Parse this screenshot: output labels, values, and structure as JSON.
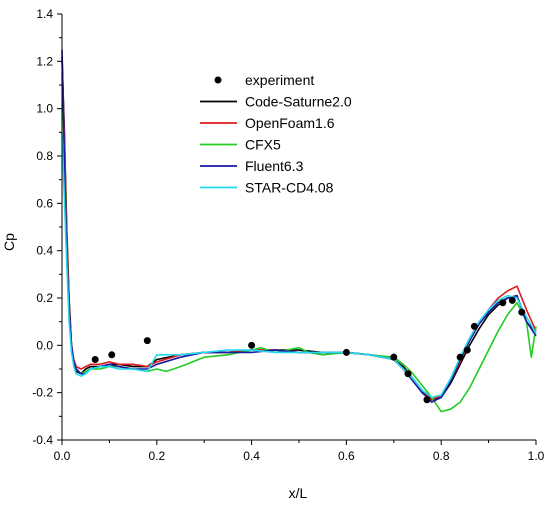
{
  "chart_data": {
    "type": "line",
    "xlabel": "x/L",
    "ylabel": "Cp",
    "xlim": [
      0.0,
      1.0
    ],
    "ylim": [
      -0.4,
      1.4
    ],
    "x_ticks": [
      "0.0",
      "0.2",
      "0.4",
      "0.6",
      "0.8",
      "1.0"
    ],
    "y_ticks": [
      "-0.4",
      "-0.2",
      "0.0",
      "0.2",
      "0.4",
      "0.6",
      "0.8",
      "1.0",
      "1.2",
      "1.4"
    ],
    "x_tick_values": [
      0.0,
      0.2,
      0.4,
      0.6,
      0.8,
      1.0
    ],
    "y_tick_values": [
      -0.4,
      -0.2,
      0.0,
      0.2,
      0.4,
      0.6,
      0.8,
      1.0,
      1.2,
      1.4
    ],
    "grid": false,
    "legend_position": "top-center",
    "experiment": {
      "name": "experiment",
      "color": "#000000",
      "x": [
        0.07,
        0.105,
        0.18,
        0.4,
        0.6,
        0.7,
        0.73,
        0.77,
        0.84,
        0.855,
        0.87,
        0.93,
        0.95,
        0.97
      ],
      "y": [
        -0.06,
        -0.04,
        0.02,
        0.0,
        -0.03,
        -0.05,
        -0.12,
        -0.23,
        -0.05,
        -0.02,
        0.08,
        0.18,
        0.19,
        0.14
      ]
    },
    "series": [
      {
        "name": "Code-Saturne2.0",
        "color": "#000000",
        "x": [
          0.0,
          0.005,
          0.01,
          0.015,
          0.02,
          0.025,
          0.03,
          0.04,
          0.05,
          0.06,
          0.08,
          0.1,
          0.12,
          0.15,
          0.18,
          0.2,
          0.25,
          0.3,
          0.35,
          0.4,
          0.45,
          0.5,
          0.55,
          0.6,
          0.65,
          0.7,
          0.72,
          0.74,
          0.76,
          0.78,
          0.8,
          0.82,
          0.84,
          0.86,
          0.88,
          0.9,
          0.92,
          0.94,
          0.96,
          0.98,
          1.0
        ],
        "y": [
          1.22,
          0.9,
          0.5,
          0.2,
          0.0,
          -0.08,
          -0.11,
          -0.12,
          -0.1,
          -0.09,
          -0.09,
          -0.08,
          -0.08,
          -0.09,
          -0.09,
          -0.06,
          -0.04,
          -0.03,
          -0.03,
          -0.02,
          -0.02,
          -0.02,
          -0.03,
          -0.03,
          -0.04,
          -0.06,
          -0.09,
          -0.14,
          -0.19,
          -0.23,
          -0.22,
          -0.16,
          -0.08,
          0.0,
          0.07,
          0.13,
          0.17,
          0.2,
          0.21,
          0.1,
          0.05
        ]
      },
      {
        "name": "OpenFoam1.6",
        "color": "#e01b1b",
        "x": [
          0.0,
          0.005,
          0.01,
          0.015,
          0.02,
          0.025,
          0.03,
          0.04,
          0.05,
          0.06,
          0.08,
          0.1,
          0.12,
          0.15,
          0.18,
          0.2,
          0.25,
          0.3,
          0.35,
          0.4,
          0.45,
          0.5,
          0.55,
          0.6,
          0.65,
          0.7,
          0.72,
          0.74,
          0.76,
          0.78,
          0.8,
          0.82,
          0.84,
          0.86,
          0.88,
          0.9,
          0.92,
          0.94,
          0.96,
          0.98,
          1.0
        ],
        "y": [
          1.2,
          0.88,
          0.48,
          0.18,
          0.0,
          -0.06,
          -0.09,
          -0.1,
          -0.09,
          -0.08,
          -0.08,
          -0.07,
          -0.08,
          -0.08,
          -0.09,
          -0.07,
          -0.04,
          -0.03,
          -0.03,
          -0.02,
          -0.02,
          -0.03,
          -0.03,
          -0.03,
          -0.04,
          -0.06,
          -0.1,
          -0.15,
          -0.2,
          -0.23,
          -0.21,
          -0.15,
          -0.07,
          0.02,
          0.09,
          0.15,
          0.2,
          0.23,
          0.25,
          0.15,
          0.06
        ]
      },
      {
        "name": "CFX5",
        "color": "#22cc22",
        "x": [
          0.0,
          0.005,
          0.01,
          0.015,
          0.02,
          0.025,
          0.03,
          0.04,
          0.05,
          0.06,
          0.08,
          0.1,
          0.12,
          0.15,
          0.18,
          0.2,
          0.22,
          0.25,
          0.3,
          0.35,
          0.4,
          0.42,
          0.45,
          0.5,
          0.52,
          0.55,
          0.6,
          0.65,
          0.7,
          0.72,
          0.74,
          0.76,
          0.78,
          0.8,
          0.82,
          0.84,
          0.86,
          0.88,
          0.9,
          0.92,
          0.94,
          0.96,
          0.98,
          0.99,
          1.0
        ],
        "y": [
          1.15,
          0.8,
          0.42,
          0.15,
          -0.02,
          -0.08,
          -0.1,
          -0.12,
          -0.11,
          -0.1,
          -0.1,
          -0.09,
          -0.09,
          -0.1,
          -0.11,
          -0.1,
          -0.11,
          -0.09,
          -0.05,
          -0.04,
          -0.02,
          -0.01,
          -0.03,
          -0.01,
          -0.03,
          -0.04,
          -0.03,
          -0.04,
          -0.05,
          -0.08,
          -0.12,
          -0.17,
          -0.22,
          -0.28,
          -0.27,
          -0.24,
          -0.18,
          -0.1,
          -0.02,
          0.06,
          0.13,
          0.18,
          0.1,
          -0.05,
          0.08
        ]
      },
      {
        "name": "Fluent6.3",
        "color": "#1a1aa6",
        "x": [
          0.0,
          0.003,
          0.006,
          0.01,
          0.015,
          0.02,
          0.025,
          0.03,
          0.04,
          0.05,
          0.06,
          0.08,
          0.1,
          0.12,
          0.15,
          0.18,
          0.2,
          0.25,
          0.3,
          0.35,
          0.4,
          0.45,
          0.5,
          0.55,
          0.6,
          0.65,
          0.7,
          0.72,
          0.74,
          0.76,
          0.78,
          0.8,
          0.82,
          0.84,
          0.86,
          0.88,
          0.9,
          0.92,
          0.94,
          0.96,
          0.98,
          1.0
        ],
        "y": [
          1.25,
          1.0,
          0.7,
          0.4,
          0.15,
          0.0,
          -0.07,
          -0.1,
          -0.12,
          -0.12,
          -0.1,
          -0.09,
          -0.08,
          -0.09,
          -0.1,
          -0.1,
          -0.08,
          -0.05,
          -0.03,
          -0.03,
          -0.03,
          -0.02,
          -0.03,
          -0.03,
          -0.03,
          -0.04,
          -0.06,
          -0.1,
          -0.15,
          -0.2,
          -0.24,
          -0.22,
          -0.15,
          -0.06,
          0.02,
          0.09,
          0.14,
          0.18,
          0.2,
          0.21,
          0.1,
          0.04
        ]
      },
      {
        "name": "STAR-CD4.08",
        "color": "#22d8f0",
        "x": [
          0.0,
          0.005,
          0.01,
          0.015,
          0.02,
          0.025,
          0.03,
          0.04,
          0.05,
          0.06,
          0.08,
          0.1,
          0.12,
          0.15,
          0.18,
          0.2,
          0.25,
          0.3,
          0.35,
          0.4,
          0.45,
          0.5,
          0.55,
          0.6,
          0.65,
          0.7,
          0.72,
          0.74,
          0.76,
          0.78,
          0.8,
          0.82,
          0.84,
          0.86,
          0.88,
          0.9,
          0.92,
          0.94,
          0.96,
          0.98,
          1.0
        ],
        "y": [
          0.9,
          0.62,
          0.35,
          0.1,
          -0.03,
          -0.09,
          -0.12,
          -0.13,
          -0.12,
          -0.1,
          -0.09,
          -0.09,
          -0.1,
          -0.1,
          -0.11,
          -0.04,
          -0.04,
          -0.03,
          -0.02,
          -0.02,
          -0.03,
          -0.03,
          -0.03,
          -0.03,
          -0.04,
          -0.06,
          -0.1,
          -0.14,
          -0.19,
          -0.22,
          -0.21,
          -0.14,
          -0.05,
          0.03,
          0.1,
          0.15,
          0.19,
          0.21,
          0.2,
          0.12,
          0.05
        ]
      }
    ]
  }
}
